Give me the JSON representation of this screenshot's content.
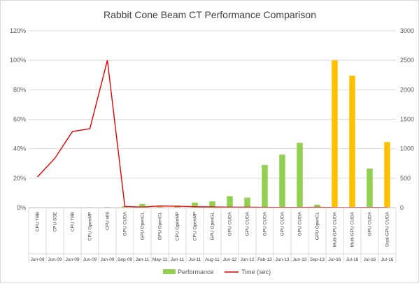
{
  "chart_data": {
    "type": "bar",
    "title": "Rabbit Cone Beam CT Performance Comparison",
    "categories": [
      {
        "label": "CPU TBB",
        "date": "Jun-09"
      },
      {
        "label": "CPU SSE",
        "date": "Jun-09"
      },
      {
        "label": "CPU TBB",
        "date": "Jun-09"
      },
      {
        "label": "CPU OpenMP",
        "date": "Jun-09"
      },
      {
        "label": "CPU x86",
        "date": "Jun-09"
      },
      {
        "label": "GPU CUDA",
        "date": "Sep-09"
      },
      {
        "label": "GPU OpenCL",
        "date": "Jan-11"
      },
      {
        "label": "GPU OpenCL",
        "date": "May-11"
      },
      {
        "label": "CPU OpenMP",
        "date": "Jun-11"
      },
      {
        "label": "CPU OpenMP",
        "date": "Jul-11"
      },
      {
        "label": "GPU OpenGL",
        "date": "Aug-11"
      },
      {
        "label": "GPU CUDA",
        "date": "Jun-12"
      },
      {
        "label": "GPU CUDA",
        "date": "Jun-12"
      },
      {
        "label": "GPU CUDA",
        "date": "Feb-13"
      },
      {
        "label": "GPU CUDA",
        "date": "Jun-13"
      },
      {
        "label": "GPU CUDA",
        "date": "Jun-13"
      },
      {
        "label": "GPU OpenCL",
        "date": "Sep-13"
      },
      {
        "label": "Multi-GPU CUDA",
        "date": "Jul-16"
      },
      {
        "label": "Multi-GPU CUDA",
        "date": "Jul-16"
      },
      {
        "label": "GPU CUDA",
        "date": "Jul-16"
      },
      {
        "label": "Dual-GPU CUDA",
        "date": "Jul-16"
      }
    ],
    "series": [
      {
        "name": "Performance",
        "axis": "left",
        "color": "#92d050",
        "highlight_color": "#ffc000",
        "highlight_indices": [
          17,
          18,
          20
        ],
        "values": [
          0.2,
          0.2,
          0.2,
          0.3,
          0.4,
          1.0,
          2.5,
          0.8,
          1.5,
          3.5,
          4.3,
          7.8,
          6.8,
          29,
          36,
          44,
          2,
          100,
          89.5,
          26.5,
          44.5
        ]
      },
      {
        "name": "Time (sec)",
        "axis": "right",
        "type": "line",
        "color": "#e60000",
        "values": [
          520,
          840,
          1290,
          1340,
          2500,
          20,
          10,
          30,
          25,
          15,
          12,
          8,
          8,
          5,
          4,
          4,
          6,
          2,
          2,
          3,
          2
        ]
      }
    ],
    "y_left": {
      "min": 0,
      "max": 120,
      "step": 20,
      "ticks": [
        "0%",
        "20%",
        "40%",
        "60%",
        "80%",
        "100%",
        "120%"
      ]
    },
    "y_right": {
      "min": 0,
      "max": 3000,
      "step": 500,
      "ticks": [
        "0",
        "500",
        "1000",
        "1500",
        "2000",
        "2500",
        "3000"
      ]
    },
    "grid": true,
    "legend": "bottom"
  }
}
